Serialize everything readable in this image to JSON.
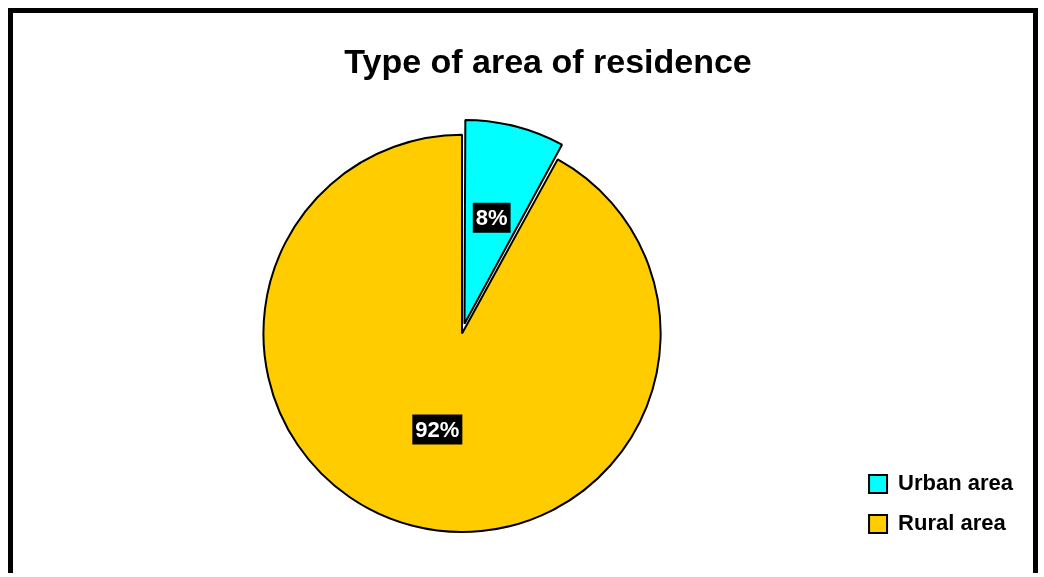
{
  "chart_data": {
    "type": "pie",
    "title": "Type of area of residence",
    "categories": [
      "Urban area",
      "Rural area"
    ],
    "values": [
      8,
      92
    ],
    "colors": [
      "#00ffff",
      "#ffcc00"
    ],
    "value_labels": [
      "8%",
      "92%"
    ],
    "legend": "bottom right"
  }
}
